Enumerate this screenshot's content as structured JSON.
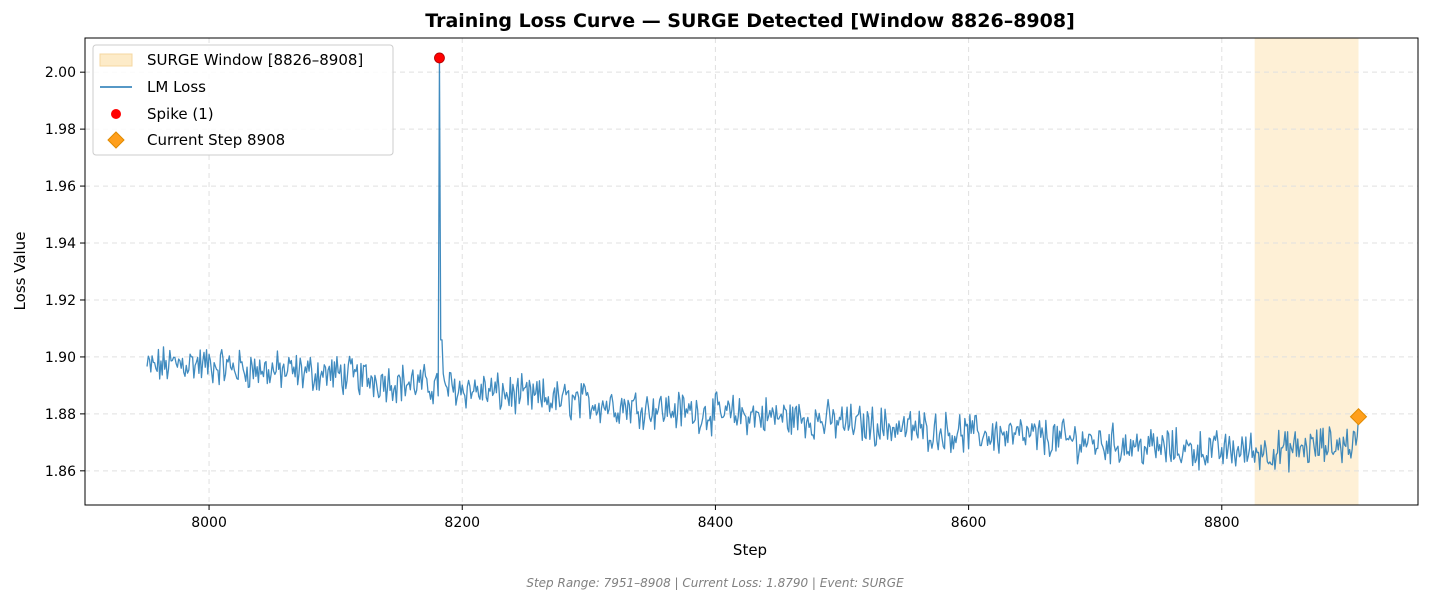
{
  "chart_data": {
    "type": "line",
    "title": "Training Loss Curve — SURGE Detected [Window 8826–8908]",
    "xlabel": "Step",
    "ylabel": "Loss Value",
    "xlim": [
      7902,
      8955
    ],
    "ylim": [
      1.848,
      2.012
    ],
    "x_ticks": [
      8000,
      8200,
      8400,
      8600,
      8800
    ],
    "x_tick_labels": [
      "8000",
      "8200",
      "8400",
      "8600",
      "8800"
    ],
    "y_ticks": [
      1.86,
      1.88,
      1.9,
      1.92,
      1.94,
      1.96,
      1.98,
      2.0
    ],
    "y_tick_labels": [
      "1.86",
      "1.88",
      "1.90",
      "1.92",
      "1.94",
      "1.96",
      "1.98",
      "2.00"
    ],
    "grid": true,
    "legend_position": "top-left",
    "legend": [
      {
        "label": "SURGE Window [8826–8908]",
        "kind": "band"
      },
      {
        "label": "LM Loss",
        "kind": "line"
      },
      {
        "label": "Spike (1)",
        "kind": "dot"
      },
      {
        "label": "Current Step 8908",
        "kind": "diamond"
      }
    ],
    "series": [
      {
        "name": "LM Loss",
        "color": "#1f77b4",
        "x_start": 7951,
        "x_end": 8908,
        "anchors": [
          [
            7951,
            1.896
          ],
          [
            7980,
            1.898
          ],
          [
            8000,
            1.897
          ],
          [
            8050,
            1.895
          ],
          [
            8100,
            1.894
          ],
          [
            8150,
            1.891
          ],
          [
            8200,
            1.889
          ],
          [
            8250,
            1.886
          ],
          [
            8300,
            1.884
          ],
          [
            8350,
            1.882
          ],
          [
            8400,
            1.88
          ],
          [
            8450,
            1.879
          ],
          [
            8500,
            1.877
          ],
          [
            8550,
            1.875
          ],
          [
            8600,
            1.873
          ],
          [
            8650,
            1.872
          ],
          [
            8700,
            1.87
          ],
          [
            8750,
            1.868
          ],
          [
            8800,
            1.867
          ],
          [
            8850,
            1.867
          ],
          [
            8908,
            1.87
          ]
        ],
        "noise_amplitude": 0.0055
      }
    ],
    "spike": {
      "x": 8182,
      "y": 2.005,
      "color": "#ff0000",
      "label": "Spike (1)"
    },
    "current_step": {
      "x": 8908,
      "y": 1.879,
      "color": "#ff9f1c",
      "label": "Current Step 8908"
    },
    "surge_window": {
      "start": 8826,
      "end": 8908,
      "color": "#fdebc8"
    }
  },
  "footer": "Step Range: 7951–8908 | Current Loss: 1.8790 | Event: SURGE"
}
